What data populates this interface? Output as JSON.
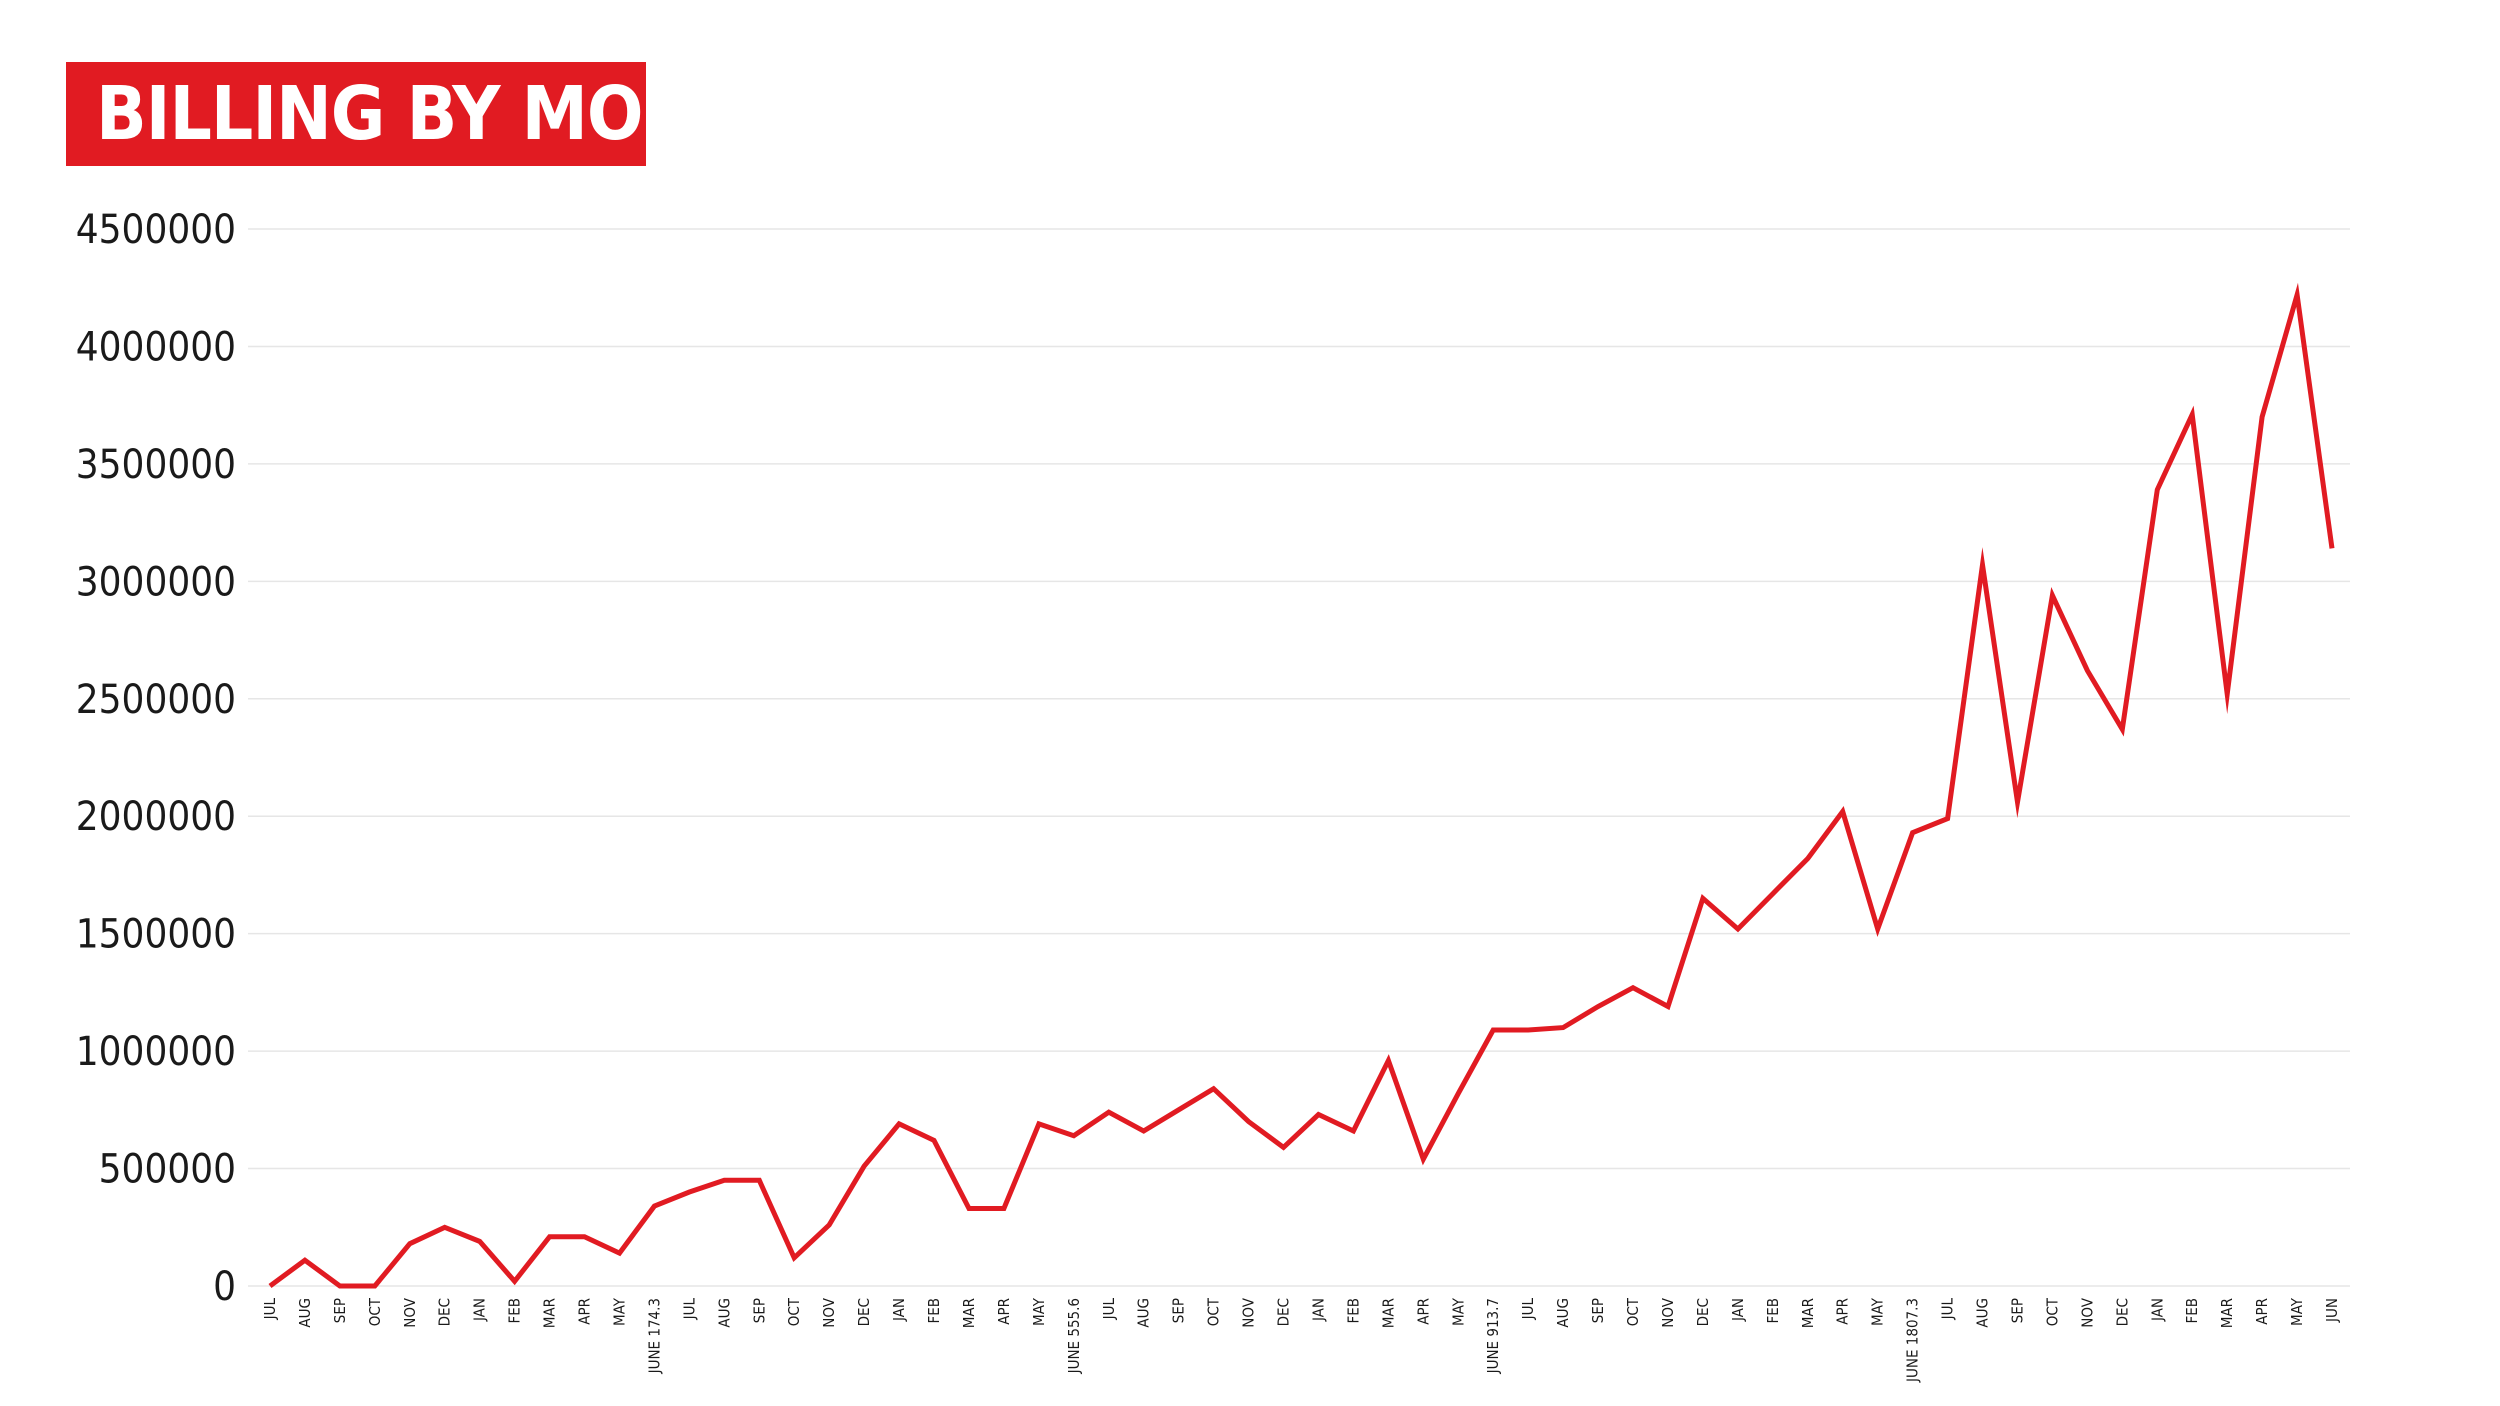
{
  "chart_data": {
    "type": "line",
    "title": "BILLING BY MONTH",
    "xlabel": "",
    "ylabel": "",
    "ylim": [
      0,
      4500000
    ],
    "yticks": [
      "0",
      "500000",
      "1000000",
      "1500000",
      "2000000",
      "2500000",
      "3000000",
      "3500000",
      "4000000",
      "4500000"
    ],
    "grid": "horizontal",
    "legend": "none",
    "line_color": "#e11b22",
    "categories": [
      "JUL",
      "AUG",
      "SEP",
      "OCT",
      "NOV",
      "DEC",
      "JAN",
      "FEB",
      "MAR",
      "APR",
      "MAY",
      "JUNE 174.3",
      "JUL",
      "AUG",
      "SEP",
      "OCT",
      "NOV",
      "DEC",
      "JAN",
      "FEB",
      "MAR",
      "APR",
      "MAY",
      "JUNE 555.6",
      "JUL",
      "AUG",
      "SEP",
      "OCT",
      "NOV",
      "DEC",
      "JAN",
      "FEB",
      "MAR",
      "APR",
      "MAY",
      "JUNE 913.7",
      "JUL",
      "AUG",
      "SEP",
      "OCT",
      "NOV",
      "DEC",
      "JAN",
      "FEB",
      "MAR",
      "APR",
      "MAY",
      "JUNE 1807.3",
      "JUL",
      "AUG",
      "SEP",
      "OCT",
      "NOV",
      "DEC",
      "JAN",
      "FEB",
      "MAR",
      "APR",
      "MAY",
      "JUN"
    ],
    "values": [
      0,
      110000,
      0,
      0,
      180000,
      250000,
      190000,
      20000,
      210000,
      210000,
      140000,
      340000,
      400000,
      450000,
      450000,
      120000,
      260000,
      510000,
      690000,
      620000,
      330000,
      330000,
      690000,
      640000,
      740000,
      660000,
      750000,
      840000,
      700000,
      590000,
      730000,
      660000,
      960000,
      540000,
      820000,
      1090000,
      1090000,
      1100000,
      1190000,
      1270000,
      1190000,
      1650000,
      1520000,
      1670000,
      1820000,
      2020000,
      1520000,
      1930000,
      1990000,
      3070000,
      2060000,
      2940000,
      2620000,
      2370000,
      3390000,
      3710000,
      2520000,
      3700000,
      4220000,
      3140000
    ]
  }
}
